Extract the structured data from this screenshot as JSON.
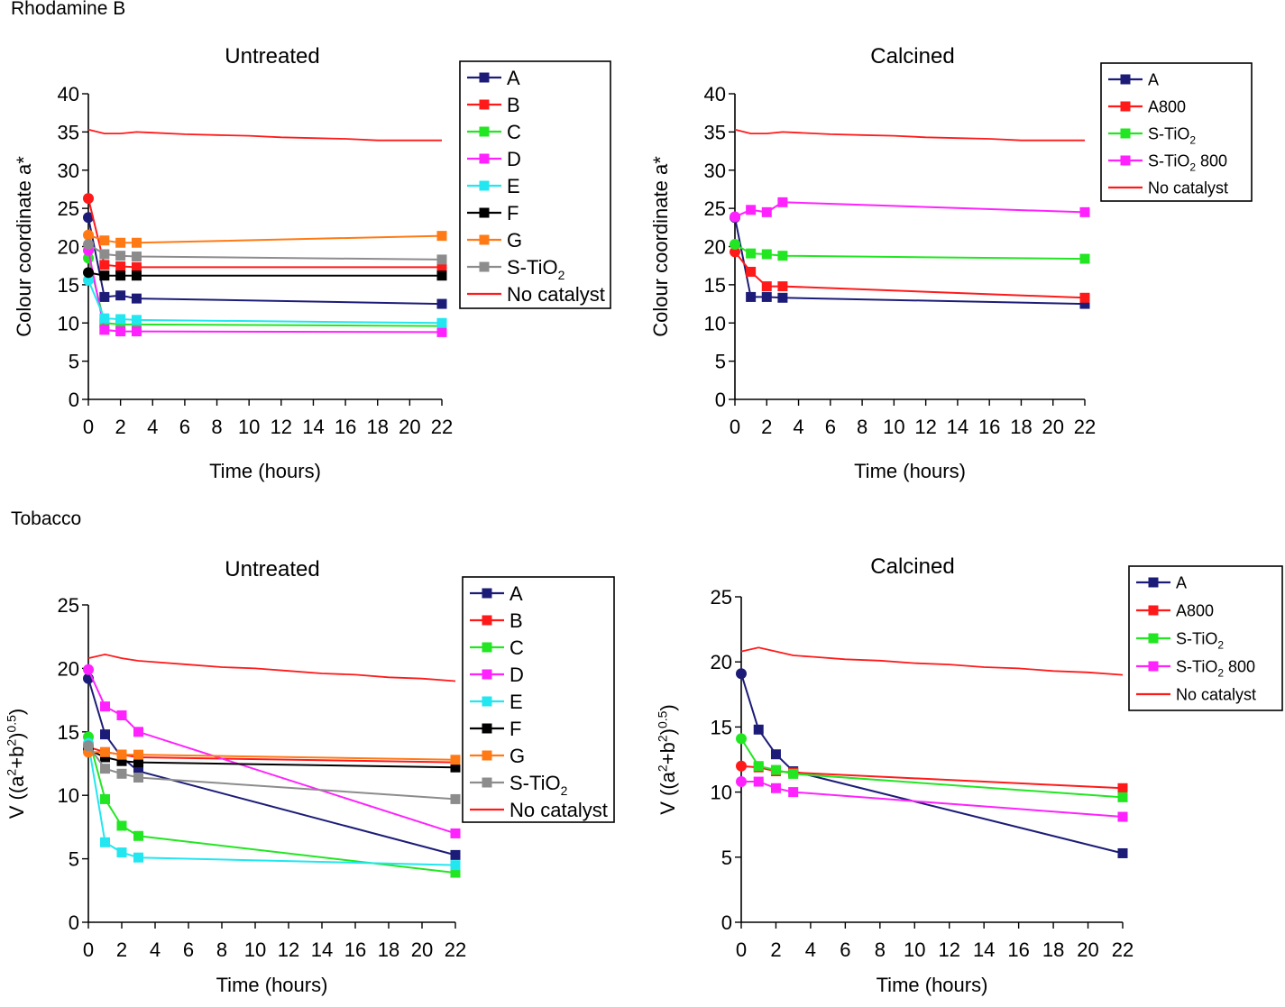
{
  "sections": {
    "top": "Rhodamine B",
    "bottom": "Tobacco"
  },
  "series_colors": {
    "A": "#1c1c78",
    "B": "#ff1a1a",
    "C": "#22e622",
    "D": "#ff22ff",
    "E": "#22e6f0",
    "F": "#000000",
    "G": "#ff7a14",
    "S-TiO2": "#8c8c8c",
    "No catalyst": "#ff1a1a",
    "A800": "#ff1a1a",
    "S-TiO2 calcined": "#22e622",
    "S-TiO2 800": "#ff22ff"
  },
  "chart_data": [
    {
      "type": "line",
      "title": "Untreated",
      "xlabel": "Time (hours)",
      "ylabel": "Colour coordinate a*",
      "xlim": [
        0,
        22
      ],
      "ylim": [
        0,
        40
      ],
      "xticks": [
        0,
        2,
        4,
        6,
        8,
        10,
        12,
        14,
        16,
        18,
        20,
        22
      ],
      "yticks": [
        0,
        5,
        10,
        15,
        20,
        25,
        30,
        35,
        40
      ],
      "legend_position": "right",
      "series": [
        {
          "name": "A",
          "color": "#1c1c78",
          "marker": true,
          "x": [
            0,
            1,
            2,
            3,
            22
          ],
          "y": [
            23.8,
            13.4,
            13.6,
            13.2,
            12.5
          ]
        },
        {
          "name": "B",
          "color": "#ff1a1a",
          "marker": true,
          "x": [
            0,
            1,
            2,
            3,
            22
          ],
          "y": [
            26.3,
            17.6,
            17.4,
            17.3,
            17.3
          ]
        },
        {
          "name": "C",
          "color": "#22e622",
          "marker": true,
          "x": [
            0,
            1,
            2,
            3,
            22
          ],
          "y": [
            18.5,
            10.0,
            9.8,
            9.8,
            9.6
          ]
        },
        {
          "name": "D",
          "color": "#ff22ff",
          "marker": true,
          "x": [
            0,
            1,
            2,
            3,
            22
          ],
          "y": [
            19.5,
            9.1,
            8.9,
            8.9,
            8.8
          ]
        },
        {
          "name": "E",
          "color": "#22e6f0",
          "marker": true,
          "x": [
            0,
            1,
            2,
            3,
            22
          ],
          "y": [
            15.6,
            10.6,
            10.5,
            10.4,
            10.0
          ]
        },
        {
          "name": "F",
          "color": "#000000",
          "marker": true,
          "x": [
            0,
            1,
            2,
            3,
            22
          ],
          "y": [
            16.6,
            16.2,
            16.2,
            16.2,
            16.2
          ]
        },
        {
          "name": "G",
          "color": "#ff7a14",
          "marker": true,
          "x": [
            0,
            1,
            2,
            3,
            22
          ],
          "y": [
            21.5,
            20.8,
            20.5,
            20.5,
            21.4
          ]
        },
        {
          "name": "S-TiO2",
          "color": "#8c8c8c",
          "marker": true,
          "x": [
            0,
            1,
            2,
            3,
            22
          ],
          "y": [
            20.3,
            19.0,
            18.8,
            18.7,
            18.3
          ]
        },
        {
          "name": "No catalyst",
          "color": "#ff1a1a",
          "marker": false,
          "x": [
            0,
            1,
            2,
            3,
            4,
            6,
            8,
            10,
            12,
            14,
            16,
            18,
            20,
            22
          ],
          "y": [
            35.3,
            34.8,
            34.8,
            35.0,
            34.9,
            34.7,
            34.6,
            34.5,
            34.3,
            34.2,
            34.1,
            33.9,
            33.9,
            33.9
          ]
        }
      ]
    },
    {
      "type": "line",
      "title": "Calcined",
      "xlabel": "Time (hours)",
      "ylabel": "Colour coordinate a*",
      "xlim": [
        0,
        22
      ],
      "ylim": [
        0,
        40
      ],
      "xticks": [
        0,
        2,
        4,
        6,
        8,
        10,
        12,
        14,
        16,
        18,
        20,
        22
      ],
      "yticks": [
        0,
        5,
        10,
        15,
        20,
        25,
        30,
        35,
        40
      ],
      "legend_position": "top-right",
      "series": [
        {
          "name": "A",
          "color": "#1c1c78",
          "marker": true,
          "x": [
            0,
            1,
            2,
            3,
            22
          ],
          "y": [
            23.8,
            13.4,
            13.4,
            13.3,
            12.5
          ]
        },
        {
          "name": "A800",
          "color": "#ff1a1a",
          "marker": true,
          "x": [
            0,
            1,
            2,
            3,
            22
          ],
          "y": [
            19.3,
            16.7,
            14.8,
            14.8,
            13.3
          ]
        },
        {
          "name": "S-TiO2",
          "color": "#22e622",
          "marker": true,
          "x": [
            0,
            1,
            2,
            3,
            22
          ],
          "y": [
            20.3,
            19.1,
            19.0,
            18.8,
            18.4
          ]
        },
        {
          "name": "S-TiO2 800",
          "color": "#ff22ff",
          "marker": true,
          "x": [
            0,
            1,
            2,
            3,
            22
          ],
          "y": [
            23.9,
            24.8,
            24.5,
            25.8,
            24.5
          ]
        },
        {
          "name": "No catalyst",
          "color": "#ff1a1a",
          "marker": false,
          "x": [
            0,
            1,
            2,
            3,
            4,
            6,
            8,
            10,
            12,
            14,
            16,
            18,
            20,
            22
          ],
          "y": [
            35.3,
            34.8,
            34.8,
            35.0,
            34.9,
            34.7,
            34.6,
            34.5,
            34.3,
            34.2,
            34.1,
            33.9,
            33.9,
            33.9
          ]
        }
      ]
    },
    {
      "type": "line",
      "title": "Untreated",
      "xlabel": "Time (hours)",
      "ylabel": "V ((a²+b²)⁰·⁵)",
      "xlim": [
        0,
        22
      ],
      "ylim": [
        0,
        25
      ],
      "xticks": [
        0,
        2,
        4,
        6,
        8,
        10,
        12,
        14,
        16,
        18,
        20,
        22
      ],
      "yticks": [
        0,
        5,
        10,
        15,
        20,
        25
      ],
      "legend_position": "right",
      "series": [
        {
          "name": "A",
          "color": "#1c1c78",
          "marker": true,
          "x": [
            0,
            1,
            2,
            3,
            22
          ],
          "y": [
            19.2,
            14.8,
            13.0,
            11.9,
            5.3
          ]
        },
        {
          "name": "B",
          "color": "#ff1a1a",
          "marker": true,
          "x": [
            0,
            1,
            2,
            3,
            22
          ],
          "y": [
            13.8,
            13.4,
            13.2,
            13.0,
            12.6
          ]
        },
        {
          "name": "C",
          "color": "#22e622",
          "marker": true,
          "x": [
            0,
            1,
            2,
            3,
            22
          ],
          "y": [
            14.6,
            9.7,
            7.6,
            6.8,
            3.9
          ]
        },
        {
          "name": "D",
          "color": "#ff22ff",
          "marker": true,
          "x": [
            0,
            1,
            2,
            3,
            22
          ],
          "y": [
            19.9,
            17.0,
            16.3,
            15.0,
            7.0
          ]
        },
        {
          "name": "E",
          "color": "#22e6f0",
          "marker": true,
          "x": [
            0,
            1,
            2,
            3,
            22
          ],
          "y": [
            14.1,
            6.3,
            5.5,
            5.1,
            4.5
          ]
        },
        {
          "name": "F",
          "color": "#000000",
          "marker": true,
          "x": [
            0,
            1,
            2,
            3,
            22
          ],
          "y": [
            13.6,
            13.0,
            12.7,
            12.6,
            12.2
          ]
        },
        {
          "name": "G",
          "color": "#ff7a14",
          "marker": true,
          "x": [
            0,
            1,
            2,
            3,
            22
          ],
          "y": [
            13.4,
            13.4,
            13.2,
            13.2,
            12.8
          ]
        },
        {
          "name": "S-TiO2",
          "color": "#8c8c8c",
          "marker": true,
          "x": [
            0,
            1,
            2,
            3,
            22
          ],
          "y": [
            13.9,
            12.1,
            11.7,
            11.4,
            9.7
          ]
        },
        {
          "name": "No catalyst",
          "color": "#ff1a1a",
          "marker": false,
          "x": [
            0,
            1,
            2,
            3,
            4,
            6,
            8,
            10,
            12,
            14,
            16,
            18,
            20,
            22
          ],
          "y": [
            20.8,
            21.1,
            20.8,
            20.6,
            20.5,
            20.3,
            20.1,
            20.0,
            19.8,
            19.6,
            19.5,
            19.3,
            19.2,
            19.0
          ]
        }
      ]
    },
    {
      "type": "line",
      "title": "Calcined",
      "xlabel": "Time (hours)",
      "ylabel": "V ((a²+b²)⁰·⁵)",
      "xlim": [
        0,
        22
      ],
      "ylim": [
        0,
        25
      ],
      "xticks": [
        0,
        2,
        4,
        6,
        8,
        10,
        12,
        14,
        16,
        18,
        20,
        22
      ],
      "yticks": [
        0,
        5,
        10,
        15,
        20,
        25
      ],
      "legend_position": "top-right",
      "series": [
        {
          "name": "A",
          "color": "#1c1c78",
          "marker": true,
          "x": [
            0,
            1,
            2,
            3,
            22
          ],
          "y": [
            19.1,
            14.8,
            12.9,
            11.6,
            5.3
          ]
        },
        {
          "name": "A800",
          "color": "#ff1a1a",
          "marker": true,
          "x": [
            0,
            1,
            2,
            3,
            22
          ],
          "y": [
            12.0,
            11.9,
            11.6,
            11.5,
            10.3
          ]
        },
        {
          "name": "S-TiO2",
          "color": "#22e622",
          "marker": true,
          "x": [
            0,
            1,
            2,
            3,
            22
          ],
          "y": [
            14.1,
            12.0,
            11.7,
            11.4,
            9.6
          ]
        },
        {
          "name": "S-TiO2 800",
          "color": "#ff22ff",
          "marker": true,
          "x": [
            0,
            1,
            2,
            3,
            22
          ],
          "y": [
            10.8,
            10.8,
            10.3,
            10.0,
            8.1
          ]
        },
        {
          "name": "No catalyst",
          "color": "#ff1a1a",
          "marker": false,
          "x": [
            0,
            1,
            2,
            3,
            4,
            6,
            8,
            10,
            12,
            14,
            16,
            18,
            20,
            22
          ],
          "y": [
            20.8,
            21.1,
            20.8,
            20.5,
            20.4,
            20.2,
            20.1,
            19.9,
            19.8,
            19.6,
            19.5,
            19.3,
            19.2,
            19.0
          ]
        }
      ]
    }
  ]
}
